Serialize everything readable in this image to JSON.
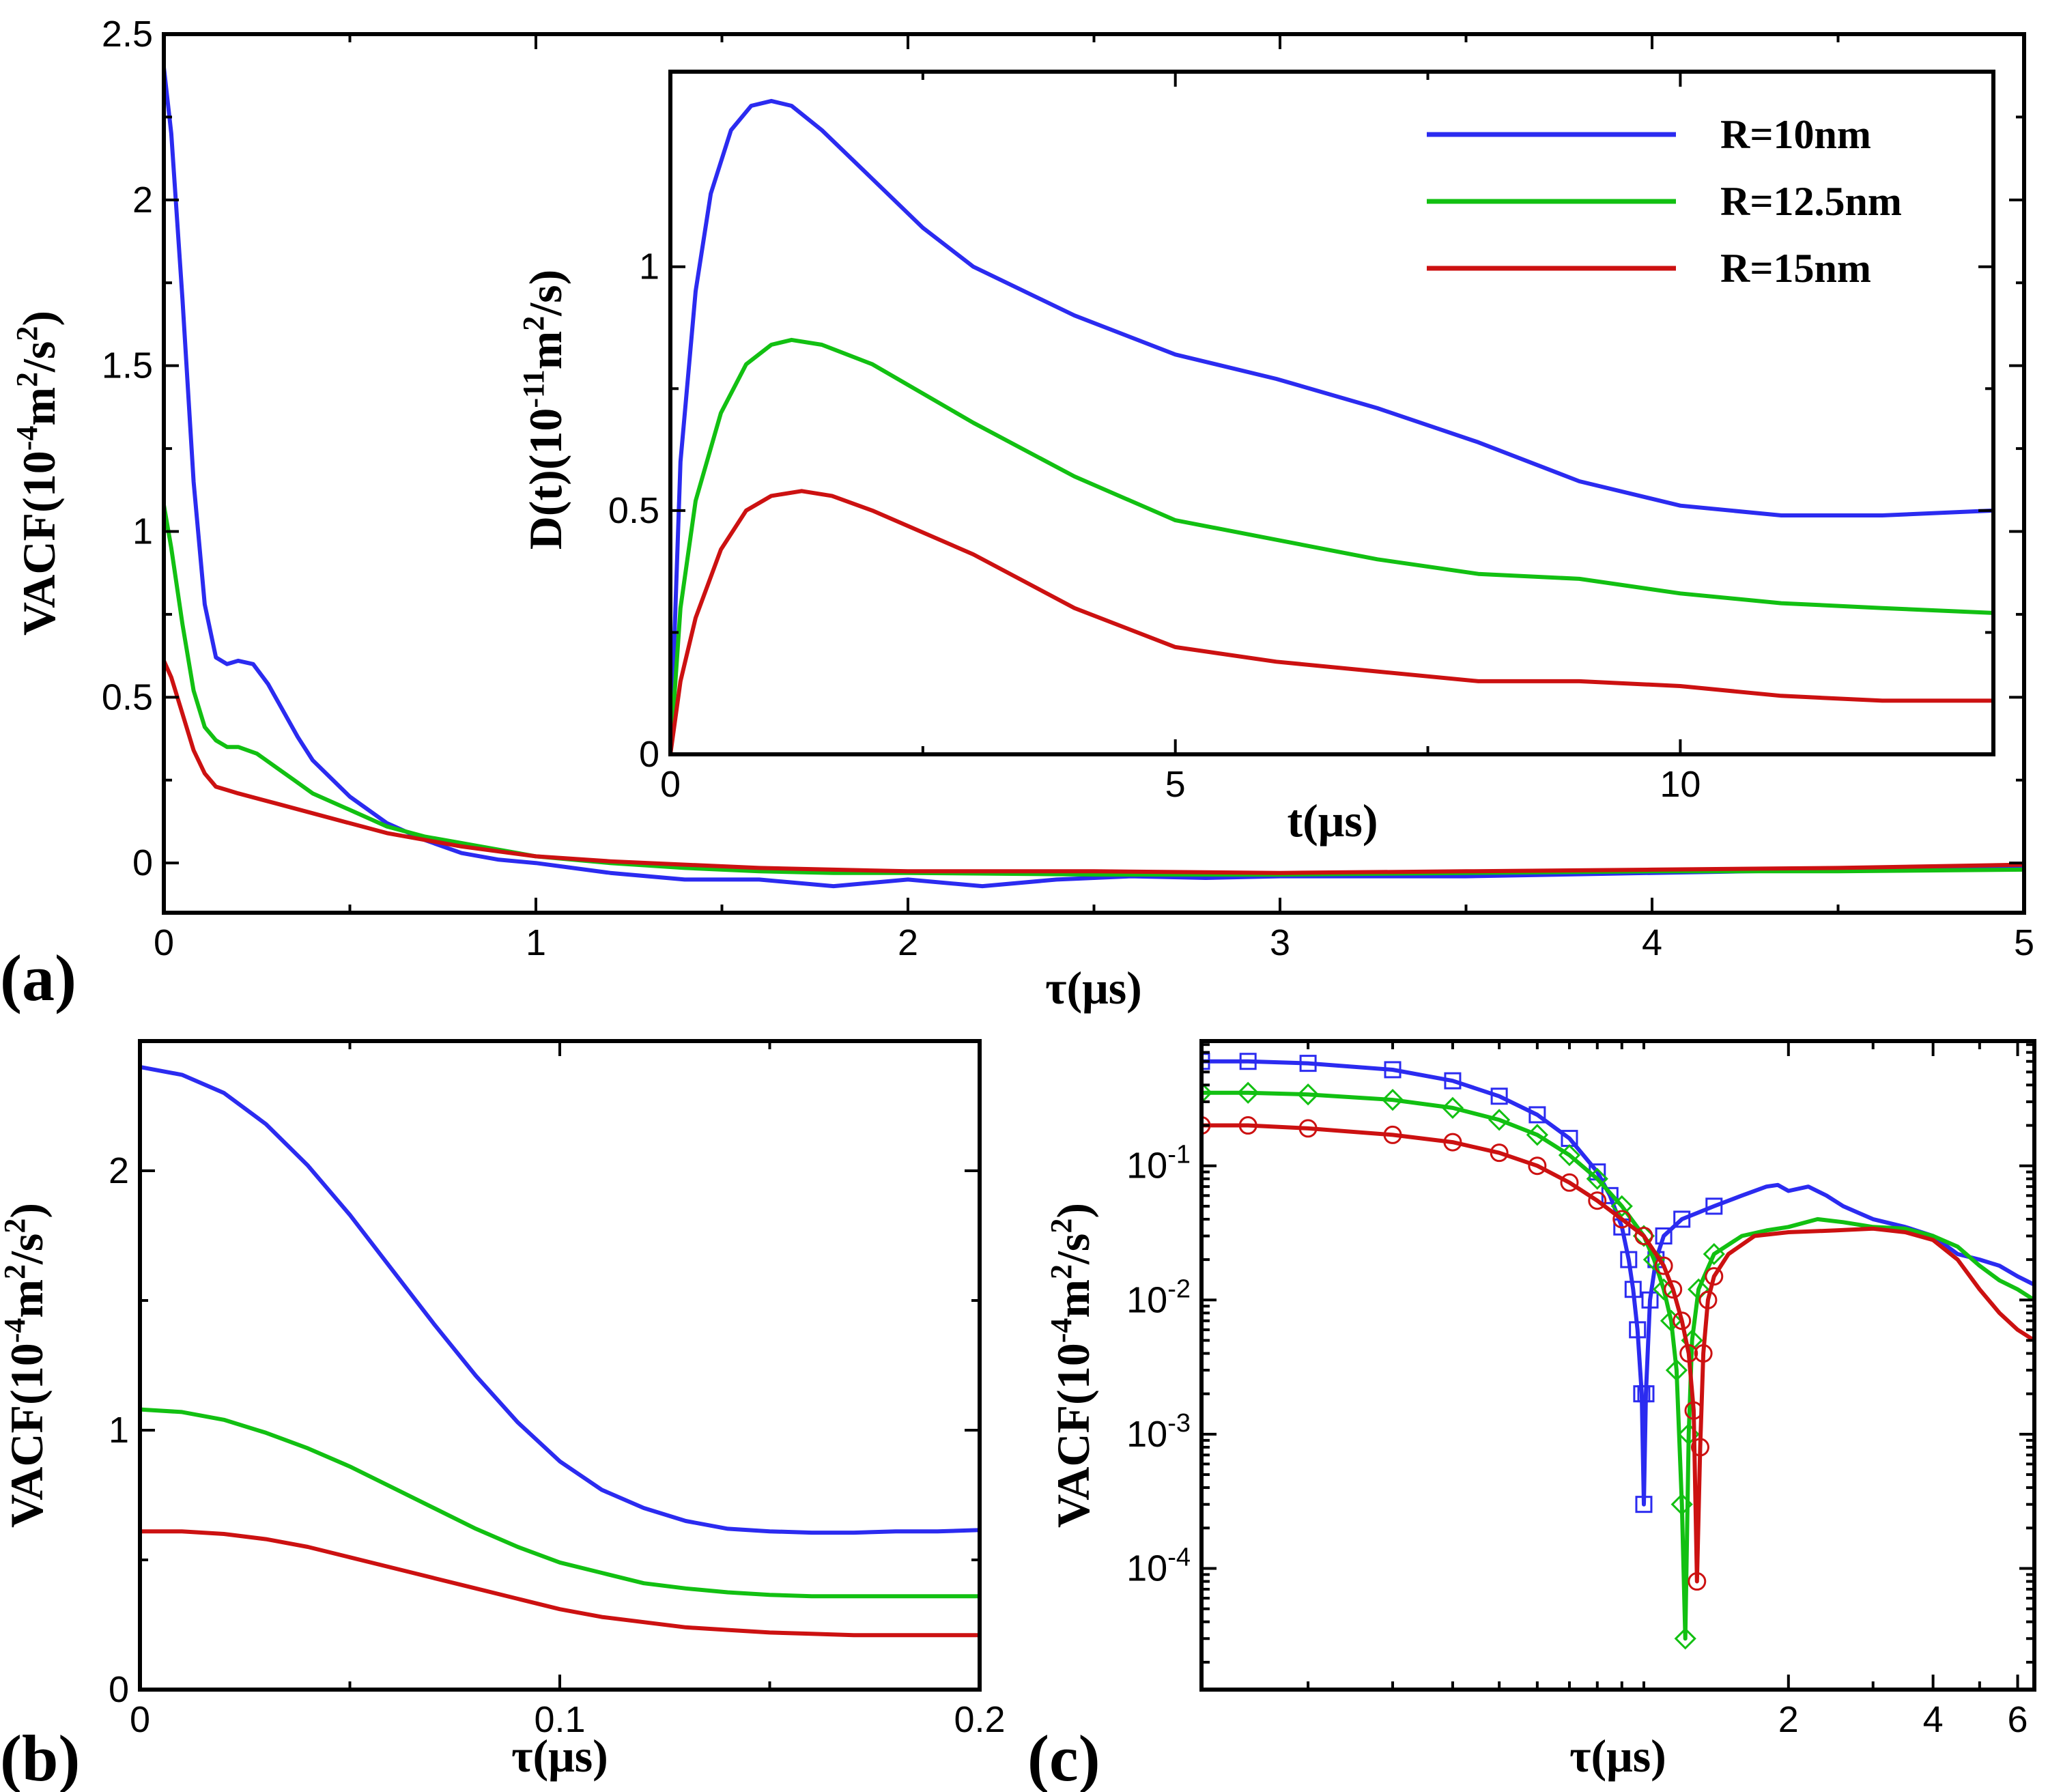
{
  "colors": {
    "blue": "#2b2bf0",
    "green": "#12c012",
    "red": "#cc1111"
  },
  "legend": {
    "labels": [
      "R=10nm",
      "R=12.5nm",
      "R=15nm"
    ],
    "placement": "top-right of inset"
  },
  "panels": {
    "a": {
      "label": "(a)",
      "xlabel": "τ(μs)",
      "ylabel": "VACF(10^-4m^2/s^2)"
    },
    "inset": {
      "xlabel": "t(μs)",
      "ylabel": "D(t)(10^-11m^2/s)"
    },
    "b": {
      "label": "(b)",
      "xlabel": "τ(μs)",
      "ylabel": "VACF(10^-4m^2/s^2)"
    },
    "c": {
      "label": "(c)",
      "xlabel": "τ(μs)",
      "ylabel": "VACF(10^-4m^2/s^2)"
    }
  },
  "chart_data": [
    {
      "id": "a",
      "type": "line",
      "title": "",
      "xlabel": "τ(μs)",
      "ylabel": "VACF(10^-4m^2/s^2)",
      "xlim": [
        0,
        5
      ],
      "ylim": [
        -0.15,
        2.5
      ],
      "xticks": [
        0,
        1,
        2,
        3,
        4,
        5
      ],
      "xtick_labels": [
        "0",
        "1",
        "2",
        "3",
        "4",
        "5"
      ],
      "yticks": [
        0,
        0.5,
        1,
        1.5,
        2,
        2.5
      ],
      "ytick_labels": [
        "0",
        "0.5",
        "1",
        "1.5",
        "2",
        "2.5"
      ],
      "series": [
        {
          "name": "R=10nm",
          "color": "blue",
          "x": [
            0,
            0.02,
            0.05,
            0.08,
            0.11,
            0.14,
            0.17,
            0.2,
            0.24,
            0.28,
            0.32,
            0.36,
            0.4,
            0.5,
            0.6,
            0.7,
            0.8,
            0.9,
            1.0,
            1.2,
            1.4,
            1.6,
            1.8,
            2.0,
            2.2,
            2.4,
            2.6,
            2.8,
            3.0,
            3.5,
            4.0,
            4.5,
            5.0
          ],
          "y": [
            2.4,
            2.2,
            1.7,
            1.15,
            0.78,
            0.62,
            0.6,
            0.61,
            0.6,
            0.54,
            0.46,
            0.38,
            0.31,
            0.2,
            0.12,
            0.07,
            0.03,
            0.01,
            0.0,
            -0.03,
            -0.05,
            -0.05,
            -0.07,
            -0.05,
            -0.07,
            -0.05,
            -0.04,
            -0.045,
            -0.04,
            -0.04,
            -0.03,
            -0.02,
            -0.01
          ]
        },
        {
          "name": "R=12.5nm",
          "color": "green",
          "x": [
            0,
            0.02,
            0.05,
            0.08,
            0.11,
            0.14,
            0.17,
            0.2,
            0.25,
            0.3,
            0.35,
            0.4,
            0.5,
            0.6,
            0.7,
            0.8,
            0.9,
            1.0,
            1.2,
            1.4,
            1.6,
            1.8,
            2.0,
            2.5,
            3.0,
            3.5,
            4.0,
            4.5,
            5.0
          ],
          "y": [
            1.08,
            0.95,
            0.72,
            0.52,
            0.41,
            0.37,
            0.35,
            0.35,
            0.33,
            0.29,
            0.25,
            0.21,
            0.16,
            0.11,
            0.08,
            0.06,
            0.04,
            0.02,
            0.0,
            -0.015,
            -0.025,
            -0.03,
            -0.03,
            -0.035,
            -0.035,
            -0.03,
            -0.025,
            -0.025,
            -0.02
          ]
        },
        {
          "name": "R=15nm",
          "color": "red",
          "x": [
            0,
            0.02,
            0.05,
            0.08,
            0.11,
            0.14,
            0.17,
            0.2,
            0.3,
            0.4,
            0.5,
            0.6,
            0.7,
            0.8,
            0.9,
            1.0,
            1.2,
            1.4,
            1.6,
            1.8,
            2.0,
            2.5,
            3.0,
            3.5,
            4.0,
            4.5,
            5.0
          ],
          "y": [
            0.61,
            0.56,
            0.45,
            0.34,
            0.27,
            0.23,
            0.22,
            0.21,
            0.18,
            0.15,
            0.12,
            0.09,
            0.07,
            0.05,
            0.035,
            0.02,
            0.005,
            -0.005,
            -0.015,
            -0.02,
            -0.025,
            -0.025,
            -0.03,
            -0.025,
            -0.02,
            -0.015,
            -0.005
          ]
        }
      ]
    },
    {
      "id": "inset",
      "type": "line",
      "title": "",
      "xlabel": "t(μs)",
      "ylabel": "D(t)(10^-11m^2/s)",
      "xlim": [
        0,
        13.1
      ],
      "ylim": [
        0,
        1.4
      ],
      "xticks": [
        0,
        5,
        10
      ],
      "xtick_labels": [
        "0",
        "5",
        "10"
      ],
      "yticks": [
        0,
        0.5,
        1
      ],
      "ytick_labels": [
        "0",
        "0.5",
        "1"
      ],
      "series": [
        {
          "name": "R=10nm",
          "color": "blue",
          "x": [
            0,
            0.1,
            0.25,
            0.4,
            0.6,
            0.8,
            1.0,
            1.2,
            1.5,
            2.0,
            2.5,
            3.0,
            4.0,
            5.0,
            6.0,
            7.0,
            8.0,
            9.0,
            10.0,
            11.0,
            12.0,
            13.1
          ],
          "y": [
            0,
            0.6,
            0.95,
            1.15,
            1.28,
            1.33,
            1.34,
            1.33,
            1.28,
            1.18,
            1.08,
            1.0,
            0.9,
            0.82,
            0.77,
            0.71,
            0.64,
            0.56,
            0.51,
            0.49,
            0.49,
            0.5
          ]
        },
        {
          "name": "R=12.5nm",
          "color": "green",
          "x": [
            0,
            0.1,
            0.25,
            0.5,
            0.75,
            1.0,
            1.2,
            1.5,
            2.0,
            3.0,
            4.0,
            5.0,
            6.0,
            7.0,
            8.0,
            9.0,
            10.0,
            11.0,
            12.0,
            13.1
          ],
          "y": [
            0,
            0.3,
            0.52,
            0.7,
            0.8,
            0.84,
            0.85,
            0.84,
            0.8,
            0.68,
            0.57,
            0.48,
            0.44,
            0.4,
            0.37,
            0.36,
            0.33,
            0.31,
            0.3,
            0.29
          ]
        },
        {
          "name": "R=15nm",
          "color": "red",
          "x": [
            0,
            0.1,
            0.25,
            0.5,
            0.75,
            1.0,
            1.3,
            1.6,
            2.0,
            3.0,
            4.0,
            5.0,
            6.0,
            7.0,
            8.0,
            9.0,
            10.0,
            11.0,
            12.0,
            13.1
          ],
          "y": [
            0,
            0.15,
            0.28,
            0.42,
            0.5,
            0.53,
            0.54,
            0.53,
            0.5,
            0.41,
            0.3,
            0.22,
            0.19,
            0.17,
            0.15,
            0.15,
            0.14,
            0.12,
            0.11,
            0.11
          ]
        }
      ]
    },
    {
      "id": "b",
      "type": "line",
      "title": "",
      "xlabel": "τ(μs)",
      "ylabel": "VACF(10^-4m^2/s^2)",
      "xlim": [
        0,
        0.2
      ],
      "ylim": [
        0,
        2.5
      ],
      "xticks": [
        0,
        0.1,
        0.2
      ],
      "xtick_labels": [
        "0",
        "0.1",
        "0.2"
      ],
      "yticks": [
        0,
        1,
        2
      ],
      "ytick_labels": [
        "0",
        "1",
        "2"
      ],
      "series": [
        {
          "name": "R=10nm",
          "color": "blue",
          "x": [
            0,
            0.01,
            0.02,
            0.03,
            0.04,
            0.05,
            0.06,
            0.07,
            0.08,
            0.09,
            0.1,
            0.11,
            0.12,
            0.13,
            0.14,
            0.15,
            0.16,
            0.17,
            0.18,
            0.19,
            0.2
          ],
          "y": [
            2.4,
            2.37,
            2.3,
            2.18,
            2.02,
            1.83,
            1.62,
            1.41,
            1.21,
            1.03,
            0.88,
            0.77,
            0.7,
            0.65,
            0.62,
            0.61,
            0.605,
            0.605,
            0.61,
            0.61,
            0.615
          ]
        },
        {
          "name": "R=12.5nm",
          "color": "green",
          "x": [
            0,
            0.01,
            0.02,
            0.03,
            0.04,
            0.05,
            0.06,
            0.07,
            0.08,
            0.09,
            0.1,
            0.11,
            0.12,
            0.13,
            0.14,
            0.15,
            0.16,
            0.17,
            0.18,
            0.19,
            0.2
          ],
          "y": [
            1.08,
            1.07,
            1.04,
            0.99,
            0.93,
            0.86,
            0.78,
            0.7,
            0.62,
            0.55,
            0.49,
            0.45,
            0.41,
            0.39,
            0.375,
            0.365,
            0.36,
            0.36,
            0.36,
            0.36,
            0.36
          ]
        },
        {
          "name": "R=15nm",
          "color": "red",
          "x": [
            0,
            0.01,
            0.02,
            0.03,
            0.04,
            0.05,
            0.06,
            0.07,
            0.08,
            0.09,
            0.1,
            0.11,
            0.12,
            0.13,
            0.14,
            0.15,
            0.16,
            0.17,
            0.18,
            0.19,
            0.2
          ],
          "y": [
            0.61,
            0.61,
            0.6,
            0.58,
            0.55,
            0.51,
            0.47,
            0.43,
            0.39,
            0.35,
            0.31,
            0.28,
            0.26,
            0.24,
            0.23,
            0.22,
            0.215,
            0.21,
            0.21,
            0.21,
            0.21
          ]
        }
      ]
    },
    {
      "id": "c",
      "type": "line",
      "scale": "log-log",
      "title": "",
      "xlabel": "τ(μs)",
      "ylabel": "VACF(10^-4m^2/s^2)",
      "xlim": [
        0.12,
        6.5
      ],
      "ylim": [
        1.25e-05,
        0.85
      ],
      "xticks": [
        2,
        4,
        6
      ],
      "xtick_labels": [
        "2",
        "4",
        "6"
      ],
      "yticks": [
        0.0001,
        0.001,
        0.01,
        0.1
      ],
      "ytick_labels": [
        "10^-4",
        "10^-3",
        "10^-2",
        "10^-1"
      ],
      "series": [
        {
          "name": "R=10nm",
          "color": "blue",
          "markers": "square",
          "x": [
            0.12,
            0.15,
            0.2,
            0.3,
            0.4,
            0.5,
            0.6,
            0.7,
            0.8,
            0.85,
            0.9,
            0.93,
            0.95,
            0.97,
            0.99,
            1.0,
            1.01,
            1.03,
            1.06,
            1.1,
            1.2,
            1.4,
            1.6,
            1.8,
            1.9,
            2.0,
            2.2,
            2.4,
            2.6,
            3.0,
            3.5,
            4.0,
            4.5,
            5.0,
            5.5,
            6.0,
            6.5
          ],
          "y": [
            0.6,
            0.6,
            0.58,
            0.52,
            0.43,
            0.33,
            0.24,
            0.16,
            0.09,
            0.06,
            0.035,
            0.02,
            0.012,
            0.006,
            0.002,
            0.0003,
            0.002,
            0.01,
            0.02,
            0.03,
            0.04,
            0.05,
            0.06,
            0.07,
            0.072,
            0.065,
            0.07,
            0.06,
            0.05,
            0.04,
            0.035,
            0.03,
            0.022,
            0.02,
            0.018,
            0.015,
            0.013
          ]
        },
        {
          "name": "R=12.5nm",
          "color": "green",
          "markers": "diamond",
          "x": [
            0.12,
            0.15,
            0.2,
            0.3,
            0.4,
            0.5,
            0.6,
            0.7,
            0.8,
            0.9,
            1.0,
            1.05,
            1.1,
            1.14,
            1.17,
            1.2,
            1.22,
            1.24,
            1.26,
            1.3,
            1.4,
            1.6,
            1.8,
            2.0,
            2.3,
            2.6,
            3.0,
            3.5,
            4.0,
            4.5,
            5.0,
            5.5,
            6.0,
            6.5
          ],
          "y": [
            0.35,
            0.35,
            0.34,
            0.31,
            0.27,
            0.22,
            0.17,
            0.12,
            0.08,
            0.05,
            0.03,
            0.02,
            0.012,
            0.007,
            0.003,
            0.0003,
            3e-05,
            0.001,
            0.005,
            0.012,
            0.022,
            0.03,
            0.033,
            0.035,
            0.04,
            0.038,
            0.035,
            0.034,
            0.03,
            0.025,
            0.018,
            0.014,
            0.012,
            0.01
          ]
        },
        {
          "name": "R=15nm",
          "color": "red",
          "markers": "circle",
          "x": [
            0.12,
            0.15,
            0.2,
            0.3,
            0.4,
            0.5,
            0.6,
            0.7,
            0.8,
            0.9,
            1.0,
            1.1,
            1.15,
            1.2,
            1.24,
            1.27,
            1.29,
            1.31,
            1.33,
            1.36,
            1.4,
            1.5,
            1.7,
            2.0,
            2.5,
            3.0,
            3.5,
            4.0,
            4.5,
            5.0,
            5.5,
            6.0,
            6.5
          ],
          "y": [
            0.2,
            0.2,
            0.19,
            0.17,
            0.15,
            0.125,
            0.1,
            0.075,
            0.055,
            0.04,
            0.03,
            0.018,
            0.012,
            0.007,
            0.004,
            0.0015,
            8e-05,
            0.0008,
            0.004,
            0.01,
            0.015,
            0.022,
            0.03,
            0.032,
            0.033,
            0.034,
            0.032,
            0.028,
            0.02,
            0.012,
            0.008,
            0.006,
            0.005
          ]
        }
      ]
    }
  ]
}
